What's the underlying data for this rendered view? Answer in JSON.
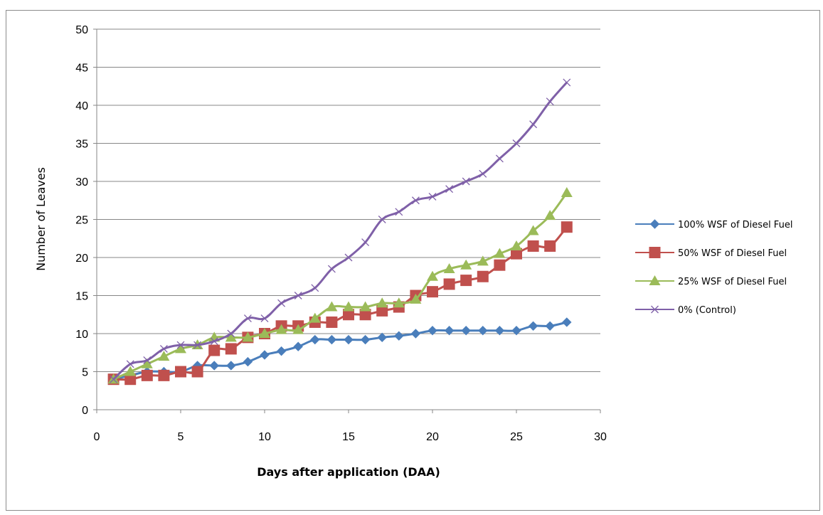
{
  "chart_data": {
    "type": "line",
    "xlabel": "Days after application (DAA)",
    "ylabel": "Number of Leaves",
    "xlim": [
      0,
      30
    ],
    "ylim": [
      0,
      50
    ],
    "xticks": [
      0,
      5,
      10,
      15,
      20,
      25,
      30
    ],
    "yticks": [
      0,
      5,
      10,
      15,
      20,
      25,
      30,
      35,
      40,
      45,
      50
    ],
    "grid": "horizontal",
    "legend_position": "right",
    "x": [
      1,
      2,
      3,
      4,
      5,
      6,
      7,
      8,
      9,
      10,
      11,
      12,
      13,
      14,
      15,
      16,
      17,
      18,
      19,
      20,
      21,
      22,
      23,
      24,
      25,
      26,
      27,
      28
    ],
    "series": [
      {
        "name": "100% WSF of Diesel Fuel",
        "color": "#4a7ebb",
        "marker": "diamond",
        "values": [
          4,
          4.5,
          5,
          5,
          5,
          5.8,
          5.8,
          5.8,
          6.3,
          7.2,
          7.7,
          8.3,
          9.2,
          9.2,
          9.2,
          9.2,
          9.5,
          9.7,
          10,
          10.4,
          10.4,
          10.4,
          10.4,
          10.4,
          10.4,
          11,
          11,
          11.5
        ]
      },
      {
        "name": "50% WSF of Diesel Fuel",
        "color": "#c0504d",
        "marker": "square",
        "values": [
          4,
          4,
          4.5,
          4.5,
          5,
          5,
          7.8,
          8,
          9.5,
          10,
          11,
          11,
          11.5,
          11.5,
          12.5,
          12.5,
          13,
          13.5,
          15,
          15.5,
          16.5,
          17,
          17.5,
          19,
          20.5,
          21.5,
          21.5,
          24
        ]
      },
      {
        "name": "25% WSF of Diesel Fuel",
        "color": "#9bbb59",
        "marker": "triangle",
        "values": [
          4,
          5,
          6,
          7,
          8,
          8.5,
          9.5,
          9.5,
          9.5,
          10,
          10.5,
          10.5,
          12,
          13.5,
          13.5,
          13.5,
          14,
          14,
          14.5,
          17.5,
          18.5,
          19,
          19.5,
          20.5,
          21.5,
          23.5,
          25.5,
          28.5
        ]
      },
      {
        "name": "0% (Control)",
        "color": "#7f60a8",
        "marker": "x",
        "values": [
          4,
          6,
          6.5,
          8,
          8.5,
          8.5,
          9,
          10,
          12,
          12,
          14,
          15,
          16,
          18.5,
          20,
          22,
          25,
          26,
          27.5,
          28,
          29,
          30,
          31,
          33,
          35,
          37.5,
          40.5,
          43
        ]
      }
    ]
  }
}
